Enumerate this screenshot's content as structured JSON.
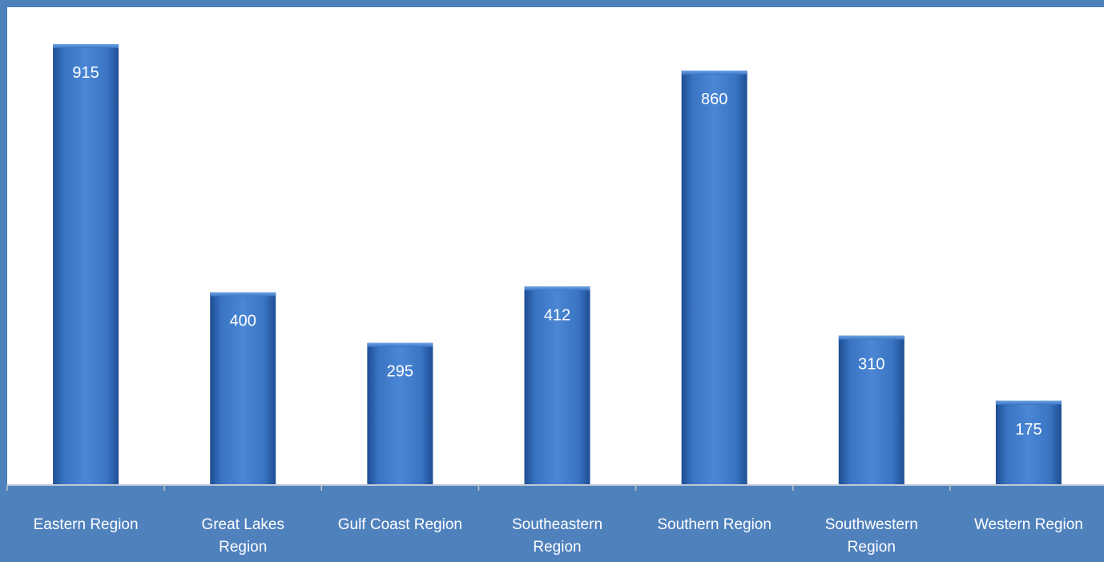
{
  "chart_data": {
    "type": "bar",
    "title": "",
    "xlabel": "",
    "ylabel": "",
    "categories": [
      "Eastern Region",
      "Great Lakes Region",
      "Gulf Coast Region",
      "Southeastern Region",
      "Southern Region",
      "Southwestern Region",
      "Western Region"
    ],
    "category_lines": [
      [
        "Eastern Region"
      ],
      [
        "Great Lakes",
        "Region"
      ],
      [
        "Gulf Coast Region"
      ],
      [
        "Southeastern",
        "Region"
      ],
      [
        "Southern Region"
      ],
      [
        "Southwestern",
        "Region"
      ],
      [
        "Western Region"
      ]
    ],
    "values": [
      915,
      400,
      295,
      412,
      860,
      310,
      175
    ],
    "data_labels": [
      "915",
      "400",
      "295",
      "412",
      "860",
      "310",
      "175"
    ],
    "ylim": [
      0,
      1000
    ],
    "grid": false,
    "legend": "none",
    "colors": {
      "background": "#4f81bd",
      "plot_area": "#ffffff",
      "bar": "#3a75c4",
      "bar_dark": "#1f4e94",
      "bar_light": "#5b95dc",
      "text": "#ffffff",
      "axis": "#bfc9d6"
    }
  }
}
